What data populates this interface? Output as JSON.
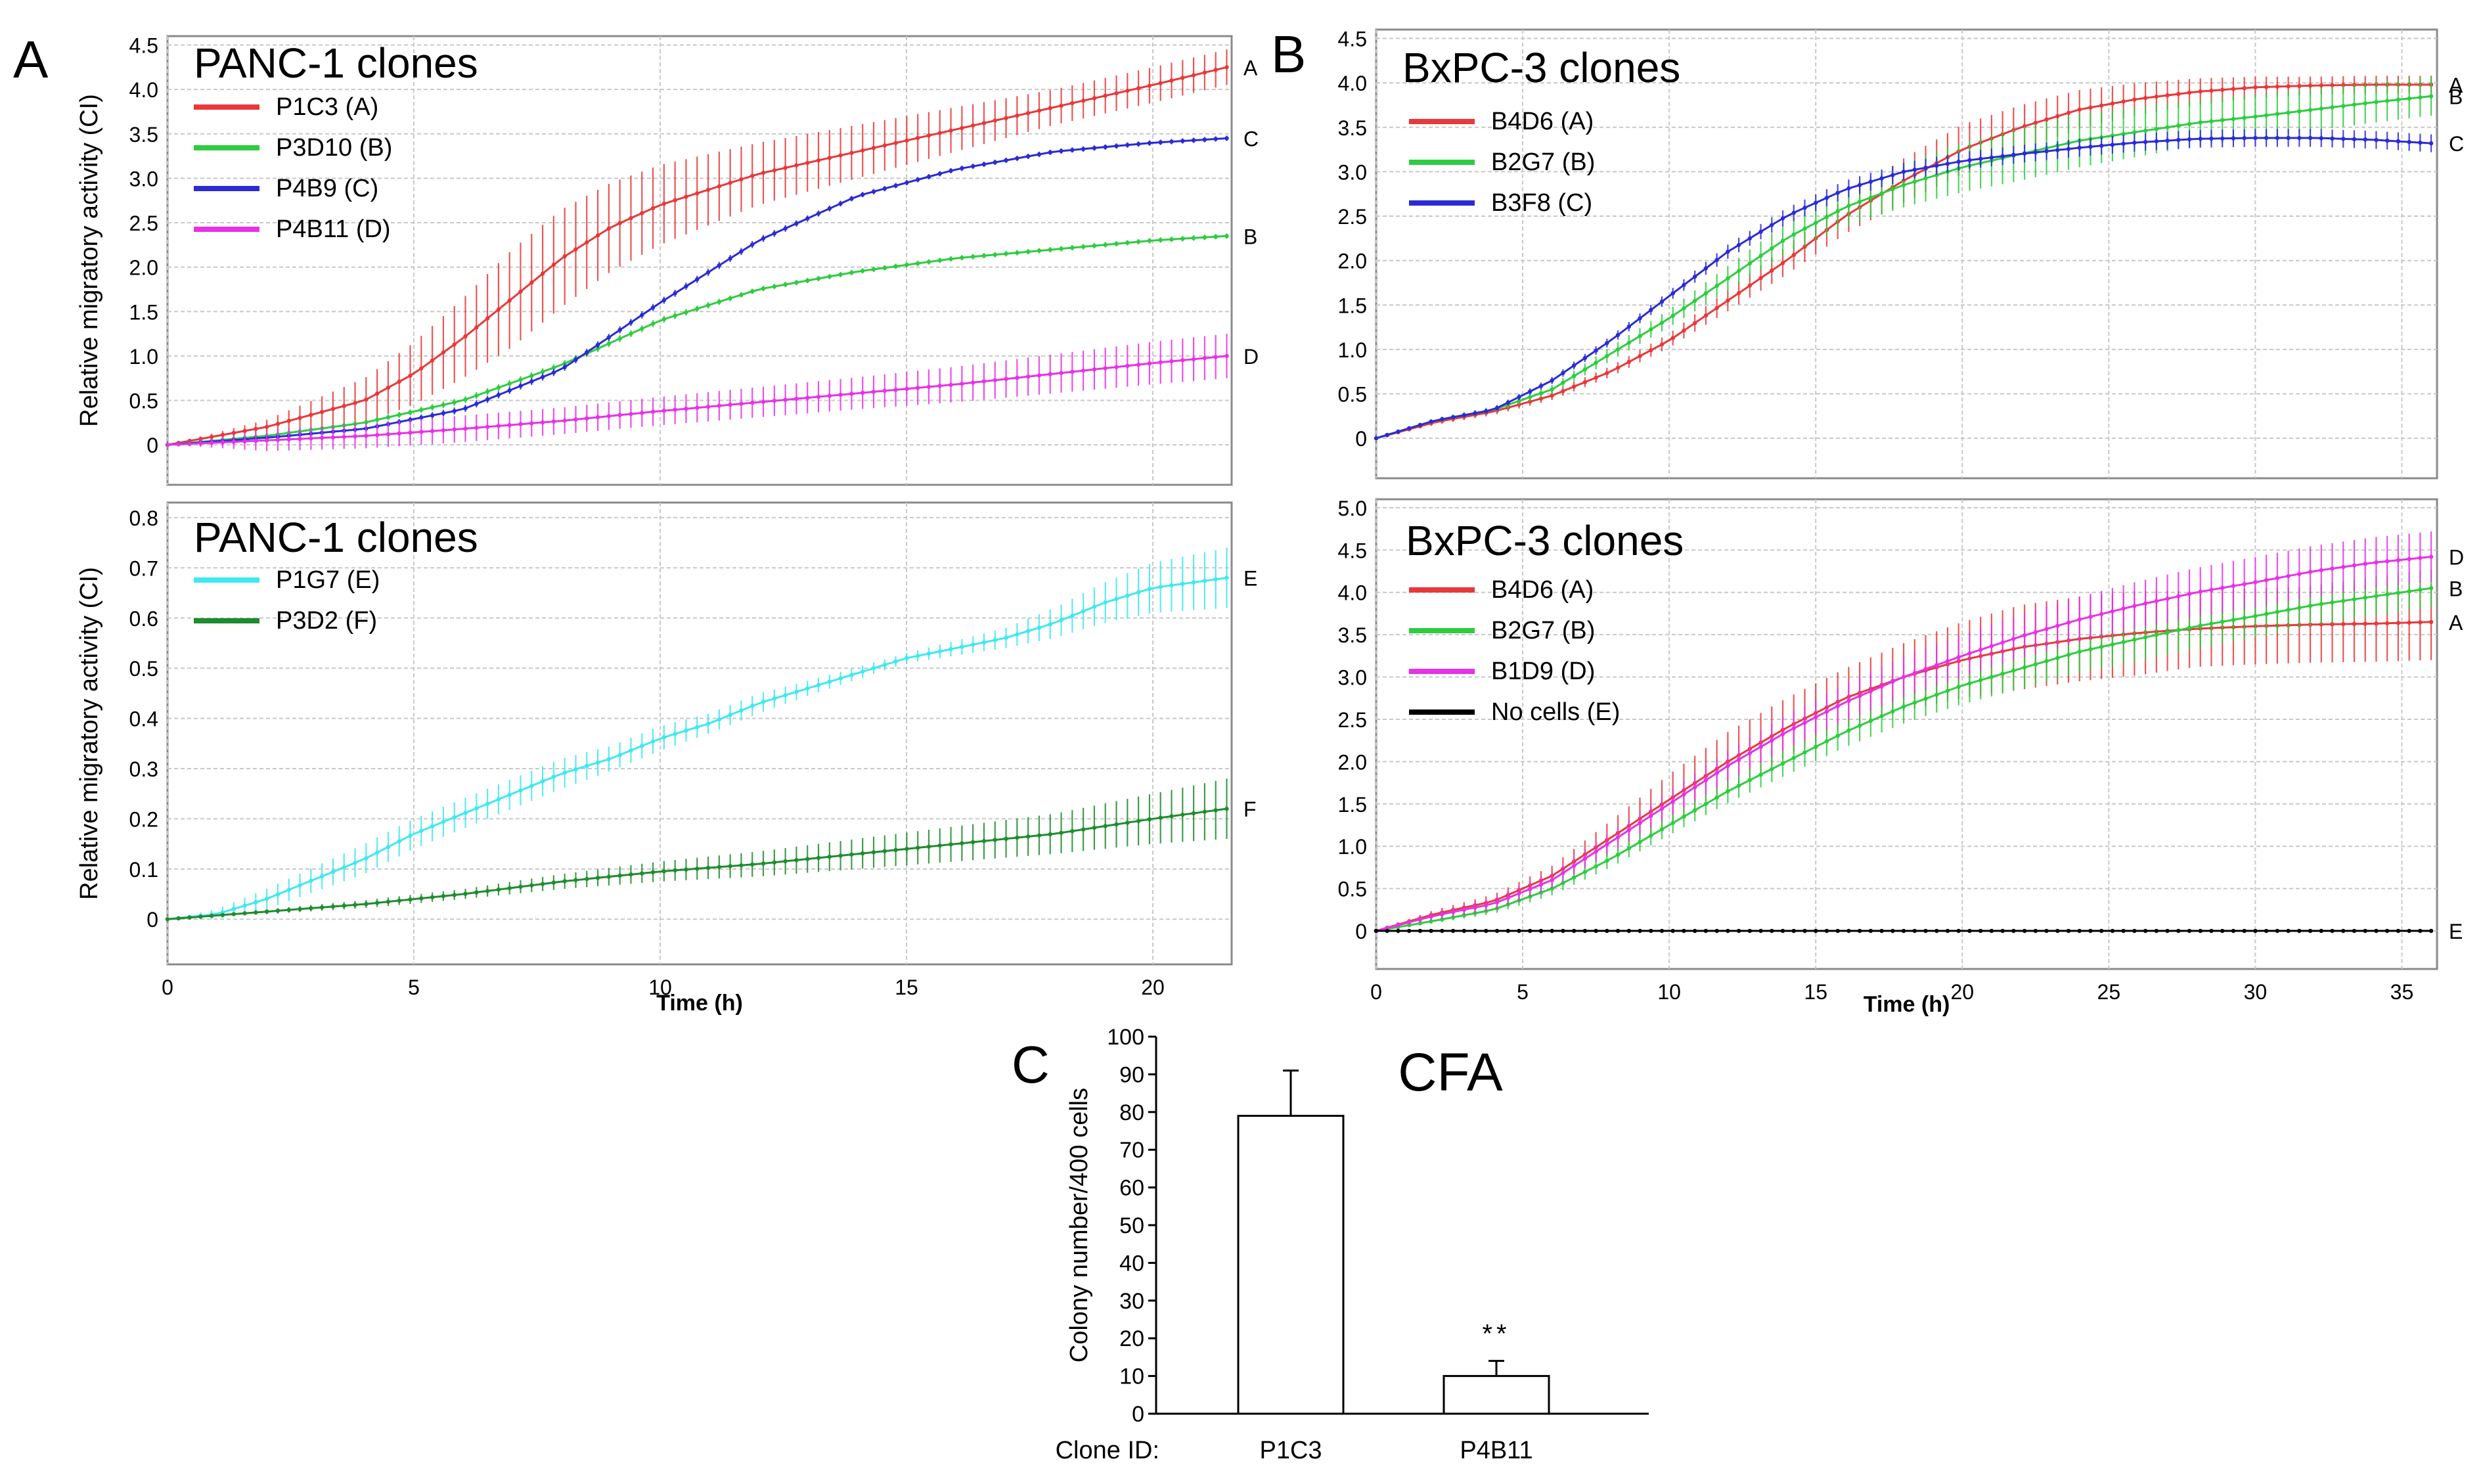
{
  "panel_labels": {
    "a": "A",
    "b": "B",
    "c": "C"
  },
  "chart_data": [
    {
      "id": "a-top",
      "type": "line",
      "title": "PANC-1 clones",
      "xlabel": "",
      "ylabel": "Relative migratory activity (CI)",
      "xlim": [
        0,
        21.6
      ],
      "ylim": [
        -0.45,
        4.6
      ],
      "xticks": [
        "0",
        "5",
        "10",
        "15",
        "20"
      ],
      "yticks": [
        "0",
        "0.5",
        "1.0",
        "1.5",
        "2.0",
        "2.5",
        "3.0",
        "3.5",
        "4.0",
        "4.5"
      ],
      "grid": true,
      "legend_position": "top-left",
      "series": [
        {
          "name": "P1C3 (A)",
          "end_label": "A",
          "color": "#e8383a",
          "x": [
            0,
            2,
            4,
            5,
            6,
            7,
            8,
            9,
            10,
            12,
            14,
            16,
            18,
            20,
            21.5
          ],
          "y": [
            0,
            0.2,
            0.5,
            0.8,
            1.2,
            1.65,
            2.1,
            2.45,
            2.7,
            3.05,
            3.3,
            3.55,
            3.8,
            4.05,
            4.25
          ],
          "err": [
            0,
            0.08,
            0.25,
            0.35,
            0.45,
            0.55,
            0.55,
            0.5,
            0.45,
            0.35,
            0.3,
            0.25,
            0.2,
            0.2,
            0.2
          ]
        },
        {
          "name": "P3D10 (B)",
          "end_label": "B",
          "color": "#2ecc40",
          "x": [
            0,
            2,
            4,
            6,
            8,
            10,
            12,
            14,
            16,
            18,
            20,
            21.5
          ],
          "y": [
            0,
            0.1,
            0.25,
            0.5,
            0.9,
            1.4,
            1.75,
            1.95,
            2.1,
            2.2,
            2.3,
            2.35
          ],
          "err": [
            0,
            0.02,
            0.03,
            0.04,
            0.04,
            0.04,
            0.03,
            0.03,
            0.03,
            0.03,
            0.03,
            0.03
          ]
        },
        {
          "name": "P4B9 (C)",
          "end_label": "C",
          "color": "#2b2bd6",
          "x": [
            0,
            2,
            4,
            6,
            8,
            10,
            12,
            14,
            16,
            18,
            20,
            21.5
          ],
          "y": [
            0,
            0.08,
            0.18,
            0.4,
            0.85,
            1.6,
            2.3,
            2.8,
            3.1,
            3.3,
            3.4,
            3.45
          ],
          "err": [
            0,
            0.02,
            0.03,
            0.04,
            0.04,
            0.04,
            0.04,
            0.03,
            0.03,
            0.03,
            0.03,
            0.03
          ]
        },
        {
          "name": "P4B11 (D)",
          "end_label": "D",
          "color": "#e632e6",
          "x": [
            0,
            2,
            4,
            6,
            8,
            10,
            12,
            14,
            16,
            18,
            20,
            21.5
          ],
          "y": [
            0,
            0.05,
            0.1,
            0.18,
            0.27,
            0.38,
            0.48,
            0.58,
            0.68,
            0.8,
            0.92,
            1.0
          ],
          "err": [
            0,
            0.12,
            0.14,
            0.15,
            0.15,
            0.16,
            0.17,
            0.18,
            0.2,
            0.22,
            0.24,
            0.25
          ]
        }
      ],
      "end_labels": [
        "A",
        "C",
        "B",
        "D"
      ]
    },
    {
      "id": "a-bottom",
      "type": "line",
      "title": "PANC-1 clones",
      "xlabel": "Time (h)",
      "ylabel": "Relative migratory activity (CI)",
      "xlim": [
        0,
        21.6
      ],
      "ylim": [
        -0.09,
        0.83
      ],
      "xticks": [
        "0",
        "5",
        "10",
        "15",
        "20"
      ],
      "yticks": [
        "0",
        "0.1",
        "0.2",
        "0.3",
        "0.4",
        "0.5",
        "0.6",
        "0.7",
        "0.8"
      ],
      "grid": true,
      "legend_position": "top-left",
      "series": [
        {
          "name": "P1G7 (E)",
          "end_label": "E",
          "color": "#3fe8f0",
          "x": [
            0,
            1,
            2,
            3,
            4,
            5,
            6,
            7,
            8,
            9,
            10,
            11,
            12,
            13,
            14,
            15,
            16,
            17,
            18,
            19,
            20,
            21.5
          ],
          "y": [
            0,
            0.01,
            0.04,
            0.08,
            0.12,
            0.17,
            0.21,
            0.25,
            0.29,
            0.32,
            0.36,
            0.39,
            0.43,
            0.46,
            0.49,
            0.52,
            0.54,
            0.56,
            0.59,
            0.63,
            0.66,
            0.68
          ],
          "err": [
            0,
            0.01,
            0.02,
            0.025,
            0.03,
            0.03,
            0.03,
            0.03,
            0.03,
            0.025,
            0.025,
            0.02,
            0.02,
            0.015,
            0.012,
            0.01,
            0.015,
            0.02,
            0.03,
            0.04,
            0.05,
            0.06
          ]
        },
        {
          "name": "P3D2 (F)",
          "end_label": "F",
          "color": "#1e8c2e",
          "x": [
            0,
            2,
            4,
            6,
            8,
            10,
            12,
            14,
            16,
            18,
            20,
            21.5
          ],
          "y": [
            0,
            0.015,
            0.03,
            0.05,
            0.075,
            0.095,
            0.11,
            0.13,
            0.15,
            0.17,
            0.2,
            0.22
          ],
          "err": [
            0,
            0.005,
            0.008,
            0.01,
            0.015,
            0.02,
            0.025,
            0.03,
            0.035,
            0.04,
            0.05,
            0.06
          ]
        }
      ],
      "end_labels": [
        "E",
        "F"
      ]
    },
    {
      "id": "b-top",
      "type": "line",
      "title": "BxPC-3 clones",
      "xlabel": "",
      "ylabel": "",
      "xlim": [
        0,
        36.2
      ],
      "ylim": [
        -0.45,
        4.6
      ],
      "xticks": [
        "0",
        "5",
        "10",
        "15",
        "20",
        "25",
        "30",
        "35"
      ],
      "yticks": [
        "0",
        "0.5",
        "1.0",
        "1.5",
        "2.0",
        "2.5",
        "3.0",
        "3.5",
        "4.0",
        "4.5"
      ],
      "grid": true,
      "legend_position": "top-left",
      "series": [
        {
          "name": "B4D6 (A)",
          "end_label": "A",
          "color": "#e8383a",
          "x": [
            0,
            2,
            4,
            6,
            8,
            10,
            12,
            14,
            16,
            18,
            20,
            22,
            24,
            26,
            28,
            30,
            32,
            34,
            36
          ],
          "y": [
            0,
            0.18,
            0.3,
            0.48,
            0.75,
            1.1,
            1.55,
            2.0,
            2.5,
            2.9,
            3.25,
            3.5,
            3.7,
            3.82,
            3.9,
            3.95,
            3.97,
            3.98,
            3.98
          ],
          "err": [
            0,
            0.03,
            0.04,
            0.05,
            0.06,
            0.08,
            0.12,
            0.16,
            0.2,
            0.25,
            0.28,
            0.25,
            0.22,
            0.18,
            0.15,
            0.12,
            0.1,
            0.1,
            0.1
          ]
        },
        {
          "name": "B2G7 (B)",
          "end_label": "B",
          "color": "#2ecc40",
          "x": [
            0,
            2,
            4,
            6,
            8,
            10,
            12,
            14,
            16,
            18,
            20,
            22,
            24,
            26,
            28,
            30,
            32,
            34,
            36
          ],
          "y": [
            0,
            0.2,
            0.32,
            0.55,
            0.95,
            1.35,
            1.8,
            2.25,
            2.6,
            2.85,
            3.05,
            3.2,
            3.35,
            3.45,
            3.55,
            3.62,
            3.7,
            3.78,
            3.85
          ],
          "err": [
            0,
            0.03,
            0.04,
            0.05,
            0.08,
            0.1,
            0.14,
            0.18,
            0.22,
            0.25,
            0.28,
            0.3,
            0.3,
            0.28,
            0.26,
            0.25,
            0.24,
            0.23,
            0.22
          ]
        },
        {
          "name": "B3F8 (C)",
          "end_label": "C",
          "color": "#2b2bd6",
          "x": [
            0,
            2,
            4,
            6,
            8,
            10,
            12,
            14,
            16,
            18,
            20,
            22,
            24,
            26,
            28,
            30,
            32,
            34,
            36
          ],
          "y": [
            0,
            0.2,
            0.32,
            0.65,
            1.1,
            1.6,
            2.1,
            2.5,
            2.8,
            3.0,
            3.12,
            3.2,
            3.27,
            3.33,
            3.37,
            3.38,
            3.38,
            3.36,
            3.32
          ],
          "err": [
            0,
            0.02,
            0.03,
            0.04,
            0.05,
            0.06,
            0.08,
            0.09,
            0.1,
            0.1,
            0.1,
            0.1,
            0.1,
            0.1,
            0.1,
            0.1,
            0.1,
            0.1,
            0.1
          ]
        }
      ],
      "end_labels": [
        "A",
        "B",
        "C"
      ]
    },
    {
      "id": "b-bottom",
      "type": "line",
      "title": "BxPC-3 clones",
      "xlabel": "Time (h)",
      "ylabel": "",
      "xlim": [
        0,
        36.2
      ],
      "ylim": [
        -0.45,
        5.1
      ],
      "xticks": [
        "0",
        "5",
        "10",
        "15",
        "20",
        "25",
        "30",
        "35"
      ],
      "yticks": [
        "0",
        "0.5",
        "1.0",
        "1.5",
        "2.0",
        "2.5",
        "3.0",
        "3.5",
        "4.0",
        "4.5",
        "5.0"
      ],
      "grid": true,
      "legend_position": "top-left",
      "series": [
        {
          "name": "B4D6 (A)",
          "end_label": "A",
          "color": "#e8383a",
          "x": [
            0,
            2,
            4,
            6,
            8,
            10,
            12,
            14,
            16,
            18,
            20,
            22,
            24,
            26,
            28,
            30,
            32,
            34,
            36
          ],
          "y": [
            0,
            0.2,
            0.35,
            0.65,
            1.1,
            1.55,
            2.0,
            2.4,
            2.75,
            3.0,
            3.2,
            3.35,
            3.45,
            3.52,
            3.57,
            3.6,
            3.62,
            3.63,
            3.65
          ],
          "err": [
            0,
            0.05,
            0.08,
            0.12,
            0.2,
            0.3,
            0.35,
            0.35,
            0.35,
            0.4,
            0.45,
            0.5,
            0.5,
            0.5,
            0.45,
            0.45,
            0.45,
            0.45,
            0.45
          ]
        },
        {
          "name": "B2G7 (B)",
          "end_label": "B",
          "color": "#2ecc40",
          "x": [
            0,
            2,
            4,
            6,
            8,
            10,
            12,
            14,
            16,
            18,
            20,
            22,
            24,
            26,
            28,
            30,
            32,
            34,
            36
          ],
          "y": [
            0,
            0.12,
            0.25,
            0.5,
            0.85,
            1.25,
            1.65,
            2.0,
            2.35,
            2.65,
            2.9,
            3.1,
            3.3,
            3.45,
            3.6,
            3.72,
            3.85,
            3.95,
            4.05
          ],
          "err": [
            0,
            0.03,
            0.05,
            0.08,
            0.1,
            0.12,
            0.14,
            0.16,
            0.18,
            0.2,
            0.22,
            0.24,
            0.25,
            0.26,
            0.26,
            0.25,
            0.24,
            0.23,
            0.22
          ]
        },
        {
          "name": "B1D9 (D)",
          "end_label": "D",
          "color": "#e632e6",
          "x": [
            0,
            2,
            4,
            6,
            8,
            10,
            12,
            14,
            16,
            18,
            20,
            22,
            24,
            26,
            28,
            30,
            32,
            34,
            36
          ],
          "y": [
            0,
            0.18,
            0.32,
            0.6,
            1.05,
            1.5,
            1.95,
            2.35,
            2.7,
            3.0,
            3.25,
            3.48,
            3.68,
            3.85,
            4.0,
            4.12,
            4.25,
            4.35,
            4.42
          ],
          "err": [
            0,
            0.05,
            0.08,
            0.1,
            0.12,
            0.15,
            0.18,
            0.2,
            0.22,
            0.24,
            0.25,
            0.26,
            0.27,
            0.28,
            0.29,
            0.3,
            0.3,
            0.3,
            0.3
          ]
        },
        {
          "name": "No cells (E)",
          "end_label": "E",
          "color": "#000000",
          "x": [
            0,
            6,
            12,
            18,
            24,
            30,
            36
          ],
          "y": [
            0,
            0,
            0,
            0,
            0,
            0,
            0
          ],
          "err": [
            0,
            0,
            0,
            0,
            0,
            0,
            0
          ]
        }
      ],
      "end_labels": [
        "D",
        "B",
        "A",
        "E"
      ]
    },
    {
      "id": "c",
      "type": "bar",
      "title": "CFA",
      "xlabel": "Clone ID:",
      "ylabel": "Colony number/400 cells",
      "categories": [
        "P1C3",
        "P4B11"
      ],
      "values": [
        79,
        10
      ],
      "errors": [
        12,
        4
      ],
      "annotations": [
        "",
        "**"
      ],
      "ylim": [
        0,
        100
      ],
      "yticks": [
        "0",
        "10",
        "20",
        "30",
        "40",
        "50",
        "60",
        "70",
        "80",
        "90",
        "100"
      ],
      "grid": false
    }
  ]
}
